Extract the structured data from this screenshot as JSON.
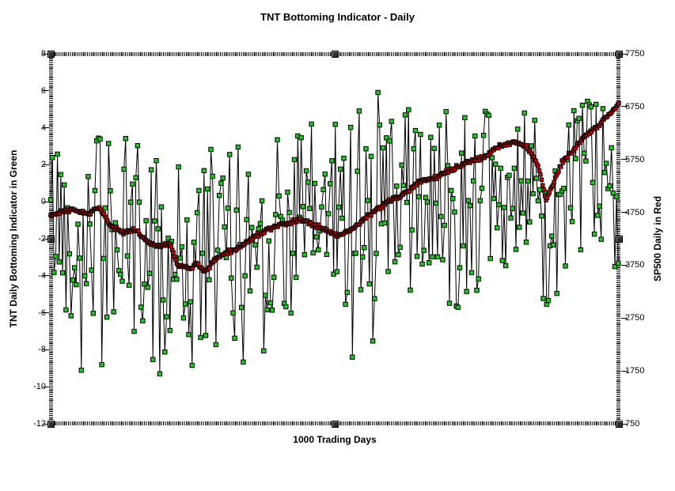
{
  "figure": {
    "title": "TNT Bottoming Indicator - Daily",
    "xlabel": "1000 Trading Days",
    "left_axis_label": "TNT Daily Bottoming Indicator in Green",
    "right_axis_label": "SP500 Daily in Red"
  },
  "chart_data": {
    "type": "line",
    "title": "TNT Bottoming Indicator - Daily",
    "xlabel": "1000 Trading Days",
    "x_axis": {
      "label": "1000 Trading Days",
      "min": 0,
      "max": 1000,
      "tick_labels_shown": false
    },
    "left_axis": {
      "label": "TNT Daily Bottoming Indicator in Green",
      "min": -12,
      "max": 8,
      "ticks": [
        8,
        6,
        4,
        2,
        0,
        -2,
        -4,
        -6,
        -8,
        -10,
        -12
      ]
    },
    "right_axis": {
      "label": "SP500 Daily in Red",
      "min": 750,
      "max": 7750,
      "ticks": [
        7750,
        6750,
        5750,
        4750,
        3750,
        2750,
        1750,
        750
      ]
    },
    "grid": "off",
    "legend": "none",
    "colors": {
      "tnt_marker": "#1EC81E",
      "sp500_marker": "#C00808",
      "connector_line": "#000000",
      "background": "#FFFFFF",
      "text": "#000000"
    },
    "series": [
      {
        "name": "TNT Daily Bottoming Indicator",
        "axis": "left",
        "marker": "square",
        "color": "#1EC81E",
        "point_interval_days": 3,
        "value_clamp": [
          -9.3,
          7.0
        ],
        "mean_waypoints": [
          [
            0,
            -0.8
          ],
          [
            40,
            -1.0
          ],
          [
            100,
            -1.6
          ],
          [
            150,
            -2.4
          ],
          [
            200,
            -2.8
          ],
          [
            260,
            -3.2
          ],
          [
            300,
            -2.6
          ],
          [
            350,
            -1.6
          ],
          [
            420,
            -1.2
          ],
          [
            480,
            -0.6
          ],
          [
            550,
            0.2
          ],
          [
            620,
            0.3
          ],
          [
            700,
            0.0
          ],
          [
            790,
            0.3
          ],
          [
            850,
            -0.5
          ],
          [
            880,
            -1.0
          ],
          [
            920,
            0.5
          ],
          [
            1000,
            1.5
          ]
        ],
        "amplitude_waypoints": [
          [
            0,
            4.5
          ],
          [
            60,
            5.5
          ],
          [
            120,
            5.5
          ],
          [
            180,
            6.0
          ],
          [
            250,
            6.2
          ],
          [
            320,
            5.5
          ],
          [
            400,
            5.0
          ],
          [
            470,
            5.2
          ],
          [
            540,
            6.2
          ],
          [
            600,
            5.5
          ],
          [
            660,
            4.8
          ],
          [
            700,
            6.2
          ],
          [
            760,
            4.8
          ],
          [
            850,
            5.2
          ],
          [
            920,
            4.6
          ],
          [
            1000,
            5.0
          ]
        ],
        "observed_extremes": {
          "max": 6.9,
          "min": -8.9
        }
      },
      {
        "name": "SP500 Daily",
        "axis": "right",
        "marker": "square",
        "color": "#C00808",
        "point_interval_days": 2,
        "daily_noise": 45,
        "trend_waypoints": [
          [
            0,
            4700
          ],
          [
            36,
            4800
          ],
          [
            64,
            4720
          ],
          [
            85,
            4850
          ],
          [
            106,
            4500
          ],
          [
            127,
            4360
          ],
          [
            148,
            4430
          ],
          [
            169,
            4200
          ],
          [
            189,
            4100
          ],
          [
            210,
            4150
          ],
          [
            224,
            3760
          ],
          [
            245,
            3680
          ],
          [
            259,
            3780
          ],
          [
            273,
            3620
          ],
          [
            287,
            3830
          ],
          [
            308,
            3980
          ],
          [
            329,
            4060
          ],
          [
            357,
            4280
          ],
          [
            384,
            4430
          ],
          [
            412,
            4530
          ],
          [
            440,
            4610
          ],
          [
            468,
            4500
          ],
          [
            496,
            4360
          ],
          [
            510,
            4310
          ],
          [
            538,
            4500
          ],
          [
            565,
            4730
          ],
          [
            593,
            4950
          ],
          [
            621,
            5100
          ],
          [
            649,
            5330
          ],
          [
            677,
            5400
          ],
          [
            705,
            5550
          ],
          [
            733,
            5700
          ],
          [
            760,
            5780
          ],
          [
            788,
            6000
          ],
          [
            816,
            6080
          ],
          [
            837,
            6000
          ],
          [
            858,
            5630
          ],
          [
            872,
            5000
          ],
          [
            886,
            5330
          ],
          [
            900,
            5700
          ],
          [
            921,
            5930
          ],
          [
            941,
            6220
          ],
          [
            962,
            6370
          ],
          [
            983,
            6600
          ],
          [
            1000,
            6800
          ]
        ]
      }
    ],
    "generation": {
      "seed": 42
    }
  }
}
